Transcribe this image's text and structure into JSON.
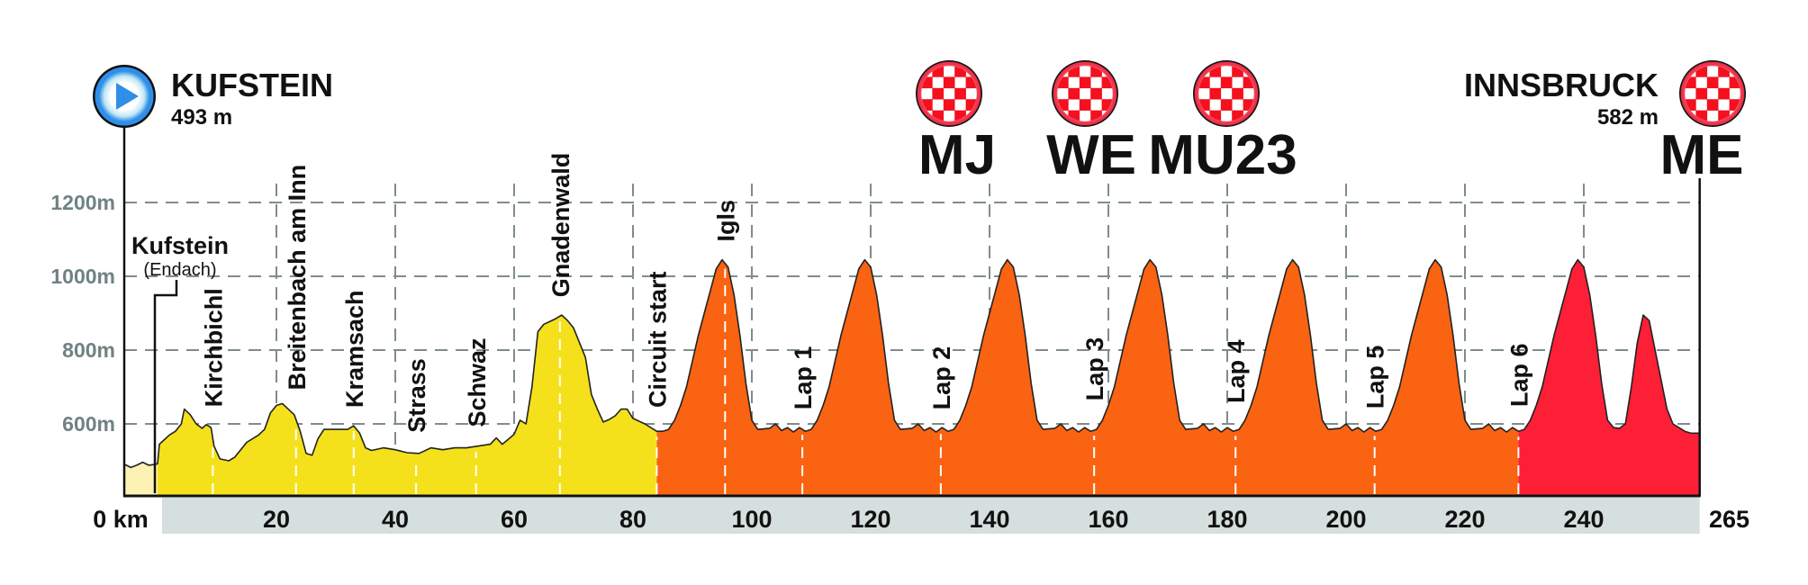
{
  "start": {
    "name": "KUFSTEIN",
    "altitude": "493 m",
    "icon": "play-start-icon"
  },
  "finish": {
    "name": "INNSBRUCK",
    "altitude": "582 m",
    "icon": "checkered-finish-icon"
  },
  "finish_markers": [
    {
      "label": "MJ",
      "km": 134,
      "icon": "checkered-finish-icon"
    },
    {
      "label": "WE",
      "km": 157,
      "icon": "checkered-finish-icon"
    },
    {
      "label": "MU23",
      "km": 181,
      "icon": "checkered-finish-icon"
    },
    {
      "label": "ME",
      "km": 259.5,
      "icon": "checkered-finish-icon"
    }
  ],
  "neutral_label": {
    "line1": "Kufstein",
    "line2": "(Endach)"
  },
  "colors": {
    "neutral": "#fbf2b4",
    "yellow": "#f5e11b",
    "orange": "#f96312",
    "red": "#fc1f36",
    "band": "#d4dfde",
    "grid": "#7f8c8c",
    "start_blue": "#2f8fe8"
  },
  "chart_data": {
    "type": "area",
    "title": "",
    "xlabel": "",
    "ylabel": "",
    "x_unit": "km",
    "y_unit": "m",
    "xlim": [
      -5.5,
      259.5
    ],
    "ylim": [
      405,
      1300
    ],
    "grid": true,
    "y_ticks": [
      {
        "value": 600,
        "label": "600m"
      },
      {
        "value": 800,
        "label": "800m"
      },
      {
        "value": 1000,
        "label": "1000m"
      },
      {
        "value": 1200,
        "label": "1200m"
      }
    ],
    "x_ticks": [
      {
        "value": 0,
        "label": "0 km"
      },
      {
        "value": 20,
        "label": "20"
      },
      {
        "value": 40,
        "label": "40"
      },
      {
        "value": 60,
        "label": "60"
      },
      {
        "value": 80,
        "label": "80"
      },
      {
        "value": 100,
        "label": "100"
      },
      {
        "value": 120,
        "label": "120"
      },
      {
        "value": 140,
        "label": "140"
      },
      {
        "value": 160,
        "label": "160"
      },
      {
        "value": 180,
        "label": "180"
      },
      {
        "value": 200,
        "label": "200"
      },
      {
        "value": 220,
        "label": "220"
      },
      {
        "value": 240,
        "label": "240"
      }
    ],
    "end_label": "265",
    "segments": [
      {
        "from": -5.5,
        "to": 0,
        "color": "#fbf2b4"
      },
      {
        "from": 0,
        "to": 84,
        "color": "#f5e11b"
      },
      {
        "from": 84,
        "to": 229,
        "color": "#f96312"
      },
      {
        "from": 229,
        "to": 259.5,
        "color": "#fc1f36"
      }
    ],
    "places": [
      {
        "name": "Kirchbichl",
        "km": 9.3
      },
      {
        "name": "Breitenbach am Inn",
        "km": 23.3
      },
      {
        "name": "Kramsach",
        "km": 33
      },
      {
        "name": "Strass",
        "km": 43.5
      },
      {
        "name": "Schwaz",
        "km": 53.6
      },
      {
        "name": "Gnadenwald",
        "km": 67.7
      },
      {
        "name": "Circuit start",
        "km": 84
      },
      {
        "name": "Igls",
        "km": 95.5
      },
      {
        "name": "Lap 1",
        "km": 108.5
      },
      {
        "name": "Lap 2",
        "km": 131.8
      },
      {
        "name": "Lap 3",
        "km": 157.6
      },
      {
        "name": "Lap 4",
        "km": 181.4
      },
      {
        "name": "Lap 5",
        "km": 204.8
      },
      {
        "name": "Lap 6",
        "km": 229
      }
    ],
    "profile": [
      [
        -5.5,
        490
      ],
      [
        -4.5,
        482
      ],
      [
        -3.5,
        488
      ],
      [
        -2.5,
        496
      ],
      [
        -1.5,
        488
      ],
      [
        -0.5,
        490
      ],
      [
        0,
        492
      ],
      [
        0.3,
        545
      ],
      [
        1,
        555
      ],
      [
        2,
        570
      ],
      [
        3,
        580
      ],
      [
        4,
        600
      ],
      [
        4.5,
        640
      ],
      [
        5.5,
        625
      ],
      [
        6.5,
        600
      ],
      [
        7.5,
        588
      ],
      [
        8.2,
        598
      ],
      [
        9,
        590
      ],
      [
        9.5,
        540
      ],
      [
        10.5,
        505
      ],
      [
        12,
        500
      ],
      [
        13,
        510
      ],
      [
        15,
        550
      ],
      [
        17,
        570
      ],
      [
        18,
        585
      ],
      [
        19,
        630
      ],
      [
        20,
        650
      ],
      [
        21,
        655
      ],
      [
        22,
        640
      ],
      [
        23,
        625
      ],
      [
        24,
        580
      ],
      [
        25,
        520
      ],
      [
        26,
        515
      ],
      [
        27,
        560
      ],
      [
        28,
        585
      ],
      [
        30,
        585
      ],
      [
        32,
        585
      ],
      [
        33,
        595
      ],
      [
        34,
        575
      ],
      [
        35,
        535
      ],
      [
        36,
        528
      ],
      [
        38,
        535
      ],
      [
        40,
        530
      ],
      [
        42,
        522
      ],
      [
        44,
        520
      ],
      [
        46,
        535
      ],
      [
        48,
        530
      ],
      [
        50,
        535
      ],
      [
        52,
        535
      ],
      [
        54,
        540
      ],
      [
        56,
        545
      ],
      [
        57,
        562
      ],
      [
        58,
        545
      ],
      [
        59,
        558
      ],
      [
        60,
        572
      ],
      [
        61,
        610
      ],
      [
        62,
        600
      ],
      [
        63,
        700
      ],
      [
        64,
        850
      ],
      [
        65,
        870
      ],
      [
        67,
        885
      ],
      [
        68,
        895
      ],
      [
        69,
        880
      ],
      [
        70,
        860
      ],
      [
        72,
        780
      ],
      [
        73,
        680
      ],
      [
        74,
        640
      ],
      [
        75,
        605
      ],
      [
        76,
        612
      ],
      [
        77,
        622
      ],
      [
        78,
        640
      ],
      [
        79,
        640
      ],
      [
        80,
        615
      ],
      [
        82,
        600
      ],
      [
        84,
        580
      ],
      [
        85,
        580
      ],
      [
        86,
        585
      ],
      [
        87,
        610
      ],
      [
        88,
        650
      ],
      [
        89,
        700
      ],
      [
        90,
        770
      ],
      [
        91,
        840
      ],
      [
        92,
        900
      ],
      [
        93,
        960
      ],
      [
        94,
        1020
      ],
      [
        95,
        1045
      ],
      [
        96,
        1025
      ],
      [
        97,
        950
      ],
      [
        98,
        840
      ],
      [
        99,
        710
      ],
      [
        100,
        610
      ],
      [
        101,
        585
      ],
      [
        103,
        588
      ],
      [
        104,
        600
      ],
      [
        105,
        582
      ],
      [
        106,
        590
      ],
      [
        107,
        578
      ],
      [
        108,
        590
      ],
      [
        109,
        580
      ],
      [
        110,
        585
      ],
      [
        111,
        610
      ],
      [
        112,
        650
      ],
      [
        113,
        700
      ],
      [
        114,
        770
      ],
      [
        115,
        840
      ],
      [
        116,
        900
      ],
      [
        117,
        960
      ],
      [
        118,
        1020
      ],
      [
        119,
        1045
      ],
      [
        120,
        1025
      ],
      [
        121,
        950
      ],
      [
        122,
        840
      ],
      [
        123,
        710
      ],
      [
        124,
        610
      ],
      [
        125,
        585
      ],
      [
        127,
        588
      ],
      [
        128,
        600
      ],
      [
        129,
        582
      ],
      [
        130,
        590
      ],
      [
        131,
        578
      ],
      [
        132,
        590
      ],
      [
        133,
        580
      ],
      [
        134,
        585
      ],
      [
        135,
        610
      ],
      [
        136,
        650
      ],
      [
        137,
        700
      ],
      [
        138,
        770
      ],
      [
        139,
        840
      ],
      [
        140,
        900
      ],
      [
        141,
        960
      ],
      [
        142,
        1020
      ],
      [
        143,
        1045
      ],
      [
        144,
        1025
      ],
      [
        145,
        950
      ],
      [
        146,
        840
      ],
      [
        147,
        710
      ],
      [
        148,
        610
      ],
      [
        149,
        585
      ],
      [
        151,
        588
      ],
      [
        152,
        600
      ],
      [
        153,
        582
      ],
      [
        154,
        590
      ],
      [
        155,
        578
      ],
      [
        156,
        590
      ],
      [
        157,
        580
      ],
      [
        158,
        585
      ],
      [
        159,
        610
      ],
      [
        160,
        650
      ],
      [
        161,
        700
      ],
      [
        162,
        770
      ],
      [
        163,
        840
      ],
      [
        164,
        900
      ],
      [
        165,
        960
      ],
      [
        166,
        1020
      ],
      [
        167,
        1045
      ],
      [
        168,
        1025
      ],
      [
        169,
        950
      ],
      [
        170,
        840
      ],
      [
        171,
        710
      ],
      [
        172,
        610
      ],
      [
        173,
        585
      ],
      [
        175,
        588
      ],
      [
        176,
        600
      ],
      [
        177,
        582
      ],
      [
        178,
        590
      ],
      [
        179,
        578
      ],
      [
        180,
        590
      ],
      [
        181,
        580
      ],
      [
        182,
        585
      ],
      [
        183,
        610
      ],
      [
        184,
        650
      ],
      [
        185,
        700
      ],
      [
        186,
        770
      ],
      [
        187,
        840
      ],
      [
        188,
        900
      ],
      [
        189,
        960
      ],
      [
        190,
        1020
      ],
      [
        191,
        1045
      ],
      [
        192,
        1025
      ],
      [
        193,
        950
      ],
      [
        194,
        840
      ],
      [
        195,
        710
      ],
      [
        196,
        610
      ],
      [
        197,
        585
      ],
      [
        199,
        588
      ],
      [
        200,
        600
      ],
      [
        201,
        582
      ],
      [
        202,
        590
      ],
      [
        203,
        578
      ],
      [
        204,
        590
      ],
      [
        205,
        580
      ],
      [
        206,
        585
      ],
      [
        207,
        610
      ],
      [
        208,
        650
      ],
      [
        209,
        700
      ],
      [
        210,
        770
      ],
      [
        211,
        840
      ],
      [
        212,
        900
      ],
      [
        213,
        960
      ],
      [
        214,
        1020
      ],
      [
        215,
        1045
      ],
      [
        216,
        1025
      ],
      [
        217,
        950
      ],
      [
        218,
        840
      ],
      [
        219,
        710
      ],
      [
        220,
        610
      ],
      [
        221,
        585
      ],
      [
        223,
        588
      ],
      [
        224,
        600
      ],
      [
        225,
        582
      ],
      [
        226,
        590
      ],
      [
        227,
        578
      ],
      [
        228,
        590
      ],
      [
        229,
        580
      ],
      [
        230,
        585
      ],
      [
        231,
        610
      ],
      [
        232,
        650
      ],
      [
        233,
        700
      ],
      [
        234,
        770
      ],
      [
        235,
        840
      ],
      [
        236,
        900
      ],
      [
        237,
        960
      ],
      [
        238,
        1020
      ],
      [
        239,
        1045
      ],
      [
        240,
        1025
      ],
      [
        241,
        950
      ],
      [
        242,
        840
      ],
      [
        243,
        710
      ],
      [
        244,
        610
      ],
      [
        245,
        590
      ],
      [
        246,
        588
      ],
      [
        247,
        600
      ],
      [
        248,
        700
      ],
      [
        249,
        820
      ],
      [
        250,
        895
      ],
      [
        251,
        880
      ],
      [
        252,
        800
      ],
      [
        253,
        720
      ],
      [
        254,
        640
      ],
      [
        255,
        600
      ],
      [
        256,
        590
      ],
      [
        257,
        580
      ],
      [
        258,
        575
      ],
      [
        259.5,
        575
      ]
    ]
  }
}
